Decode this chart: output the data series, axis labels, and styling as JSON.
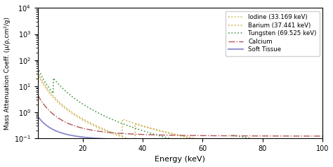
{
  "title": "",
  "xlabel": "Energy (keV)",
  "ylabel": "Mass Attenuation Coeff. (μ/ρ,cm²/g)",
  "xlim": [
    5,
    100
  ],
  "ylim": [
    0.1,
    10000
  ],
  "xticks": [
    20,
    40,
    60,
    80,
    100
  ],
  "legend_labels": [
    "Iodine (33.169 keV)",
    "Barium (37.441 keV)",
    "Tungsten (69.525 keV)",
    "Calcium",
    "Soft Tissue"
  ],
  "colors": {
    "iodine": "#c8b85a",
    "barium": "#d4a84b",
    "tungsten": "#4a9c4a",
    "calcium": "#b05555",
    "soft_tissue": "#8888cc"
  },
  "k_edge_iodine": 33.169,
  "k_edge_barium": 37.441,
  "k_edge_tungsten": 69.525
}
